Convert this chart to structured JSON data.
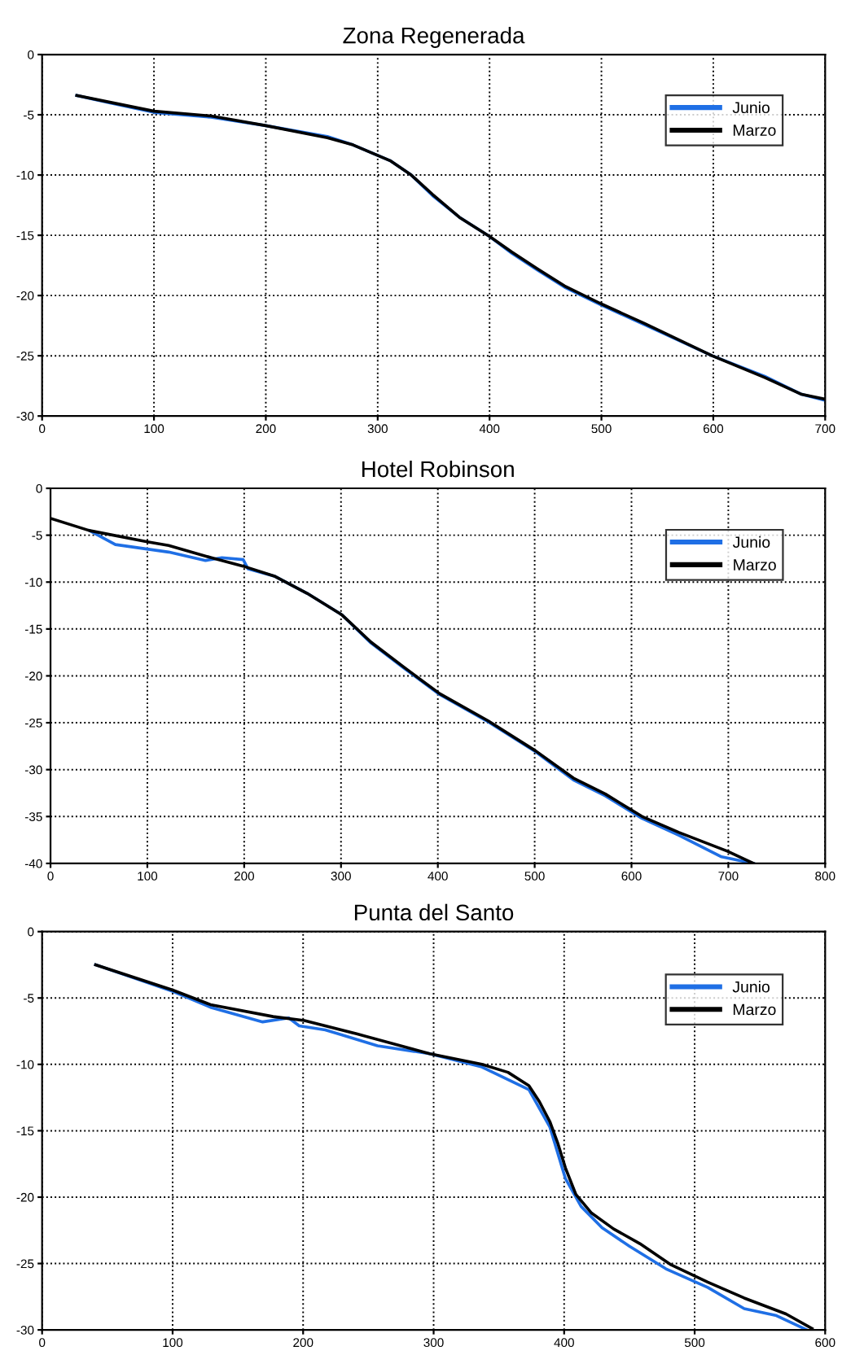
{
  "chart_data": [
    {
      "type": "line",
      "title": "Zona Regenerada",
      "xlim": [
        0,
        700
      ],
      "xticks": [
        0,
        100,
        200,
        300,
        400,
        500,
        600,
        700
      ],
      "ylim": [
        -30,
        0
      ],
      "yticks": [
        0,
        -5,
        -10,
        -15,
        -20,
        -25,
        -30
      ],
      "grid": true,
      "legend": "top right",
      "series": [
        {
          "name": "Junio",
          "color": "#1f6fe5",
          "x": [
            31,
            60,
            100,
            151,
            200,
            255,
            278,
            311,
            330,
            349,
            373,
            400,
            420,
            443,
            467,
            500,
            538,
            599,
            646,
            679,
            700
          ],
          "values": [
            -3.4,
            -4.0,
            -4.8,
            -5.2,
            -5.9,
            -6.8,
            -7.5,
            -8.8,
            -10.0,
            -11.7,
            -13.5,
            -15.1,
            -16.5,
            -17.9,
            -19.3,
            -20.8,
            -22.4,
            -25.0,
            -26.7,
            -28.2,
            -28.7
          ]
        },
        {
          "name": "Marzo",
          "color": "#000000",
          "x": [
            31,
            100,
            151,
            200,
            255,
            278,
            311,
            330,
            349,
            373,
            400,
            420,
            443,
            467,
            500,
            538,
            599,
            646,
            679,
            700
          ],
          "values": [
            -3.4,
            -4.7,
            -5.1,
            -5.9,
            -6.9,
            -7.5,
            -8.8,
            -10.0,
            -11.6,
            -13.5,
            -15.1,
            -16.4,
            -17.8,
            -19.2,
            -20.7,
            -22.3,
            -25.0,
            -26.8,
            -28.2,
            -28.6
          ]
        }
      ]
    },
    {
      "type": "line",
      "title": "Hotel Robinson",
      "xlim": [
        0,
        800
      ],
      "xticks": [
        0,
        100,
        200,
        300,
        400,
        500,
        600,
        700,
        800
      ],
      "ylim": [
        -40,
        0
      ],
      "yticks": [
        0,
        -5,
        -10,
        -15,
        -20,
        -25,
        -30,
        -35,
        -40
      ],
      "grid": true,
      "legend": "top right",
      "series": [
        {
          "name": "Junio",
          "color": "#1f6fe5",
          "x": [
            40,
            67,
            122,
            160,
            177,
            199,
            204,
            232,
            265,
            301,
            331,
            364,
            402,
            452,
            501,
            540,
            573,
            611,
            649,
            693,
            726
          ],
          "values": [
            -4.5,
            -6.0,
            -6.8,
            -7.7,
            -7.4,
            -7.6,
            -8.6,
            -9.4,
            -11.2,
            -13.5,
            -16.5,
            -19.1,
            -22.0,
            -24.9,
            -28.1,
            -31.1,
            -32.8,
            -35.2,
            -37.0,
            -39.3,
            -40.0
          ]
        },
        {
          "name": "Marzo",
          "color": "#000000",
          "x": [
            0,
            40,
            100,
            122,
            166,
            199,
            232,
            265,
            301,
            331,
            364,
            402,
            452,
            501,
            540,
            573,
            611,
            649,
            699,
            726
          ],
          "values": [
            -3.2,
            -4.5,
            -5.7,
            -6.1,
            -7.4,
            -8.3,
            -9.4,
            -11.2,
            -13.5,
            -16.4,
            -19.0,
            -21.9,
            -24.8,
            -28.0,
            -30.9,
            -32.6,
            -35.0,
            -36.7,
            -38.7,
            -40.0
          ]
        }
      ]
    },
    {
      "type": "line",
      "title": "Punta del Santo",
      "xlim": [
        0,
        600
      ],
      "xticks": [
        0,
        100,
        200,
        300,
        400,
        500,
        600
      ],
      "ylim": [
        -30,
        0
      ],
      "yticks": [
        0,
        -5,
        -10,
        -15,
        -20,
        -25,
        -30
      ],
      "grid": true,
      "legend": "top right",
      "series": [
        {
          "name": "Junio",
          "color": "#1f6fe5",
          "x": [
            41,
            100,
            129,
            169,
            189,
            197,
            217,
            257,
            297,
            337,
            373,
            389,
            401,
            413,
            429,
            450,
            478,
            510,
            538,
            562,
            586
          ],
          "values": [
            -2.5,
            -4.5,
            -5.7,
            -6.8,
            -6.5,
            -7.1,
            -7.4,
            -8.6,
            -9.2,
            -10.2,
            -11.9,
            -14.7,
            -18.6,
            -20.7,
            -22.3,
            -23.7,
            -25.4,
            -26.8,
            -28.4,
            -28.9,
            -30.0
          ]
        },
        {
          "name": "Marzo",
          "color": "#000000",
          "x": [
            41,
            100,
            129,
            177,
            201,
            241,
            297,
            337,
            357,
            373,
            381,
            389,
            395,
            401,
            409,
            421,
            438,
            458,
            482,
            510,
            538,
            570,
            590
          ],
          "values": [
            -2.5,
            -4.4,
            -5.5,
            -6.4,
            -6.7,
            -7.7,
            -9.2,
            -10.0,
            -10.6,
            -11.6,
            -12.8,
            -14.3,
            -15.9,
            -17.8,
            -19.8,
            -21.2,
            -22.4,
            -23.5,
            -25.1,
            -26.4,
            -27.6,
            -28.8,
            -29.9
          ]
        }
      ]
    }
  ]
}
